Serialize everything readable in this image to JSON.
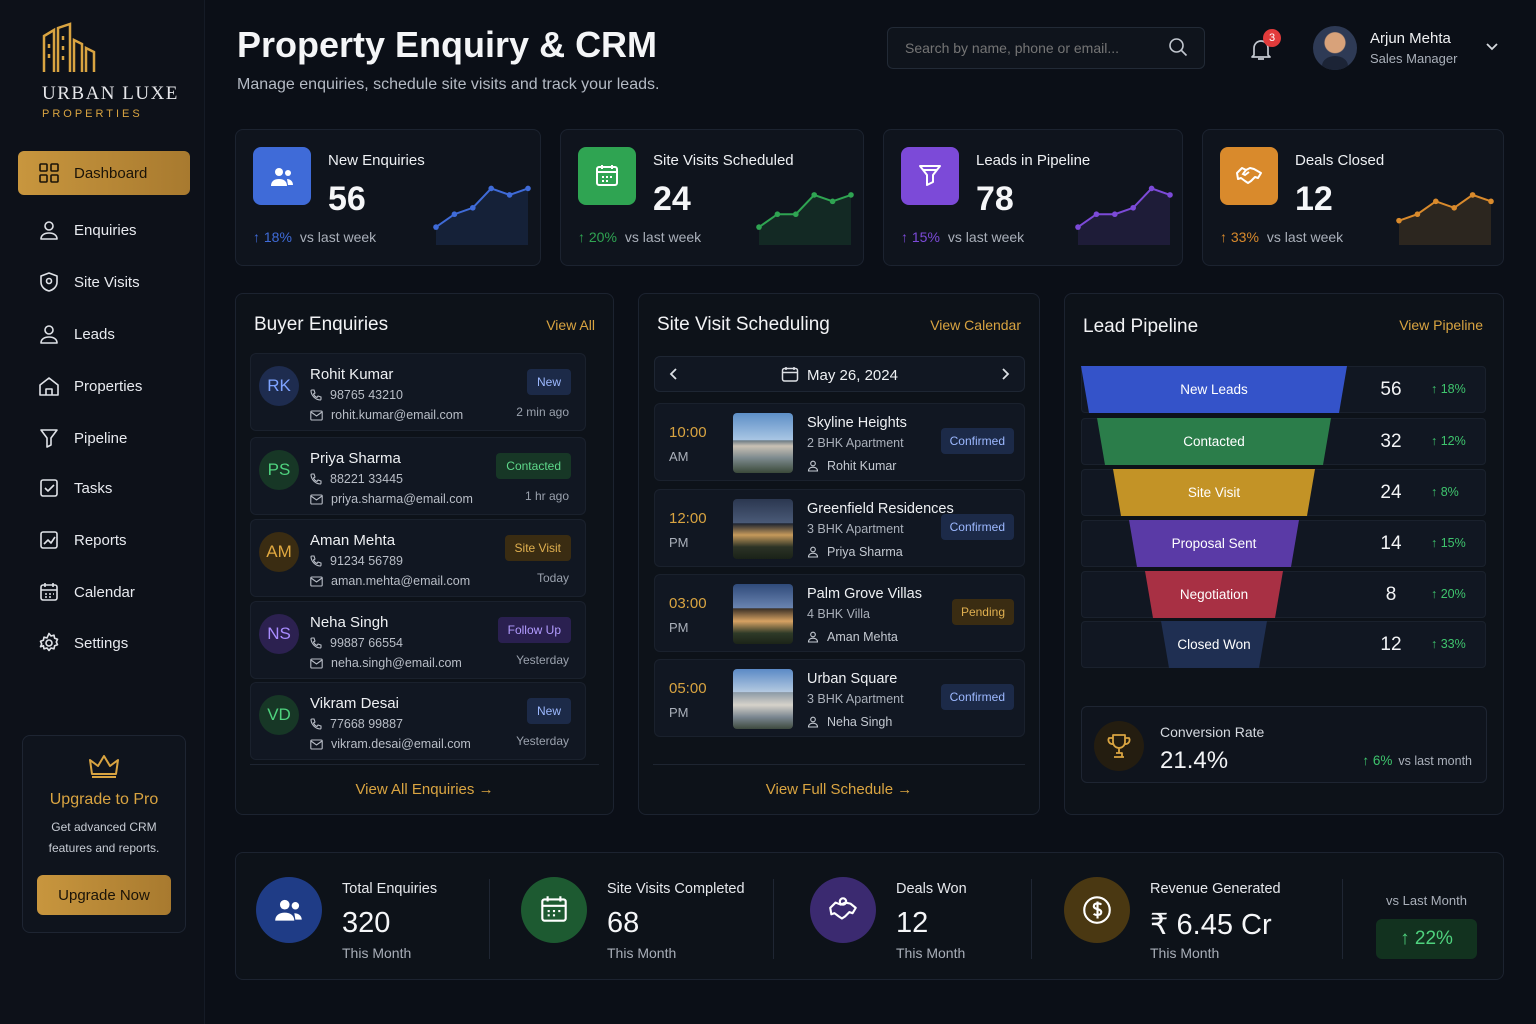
{
  "brand": {
    "name": "URBAN LUXE",
    "tagline": "PROPERTIES"
  },
  "nav": [
    {
      "label": "Dashboard",
      "icon": "grid-icon",
      "active": true
    },
    {
      "label": "Enquiries",
      "icon": "user-icon"
    },
    {
      "label": "Site Visits",
      "icon": "location-icon"
    },
    {
      "label": "Leads",
      "icon": "user-icon"
    },
    {
      "label": "Properties",
      "icon": "home-icon"
    },
    {
      "label": "Pipeline",
      "icon": "funnel-icon"
    },
    {
      "label": "Tasks",
      "icon": "checkbox-icon"
    },
    {
      "label": "Reports",
      "icon": "chart-icon"
    },
    {
      "label": "Calendar",
      "icon": "calendar-icon"
    },
    {
      "label": "Settings",
      "icon": "gear-icon"
    }
  ],
  "upgrade": {
    "title": "Upgrade to Pro",
    "line1": "Get advanced CRM",
    "line2": "features and reports.",
    "button": "Upgrade Now"
  },
  "header": {
    "title": "Property Enquiry & CRM",
    "subtitle": "Manage enquiries, schedule site visits and track your leads.",
    "search_placeholder": "Search by name, phone or email...",
    "notifications": "3",
    "user_name": "Arjun Mehta",
    "user_role": "Sales Manager"
  },
  "kpis": [
    {
      "label": "New Enquiries",
      "value": "56",
      "delta": "18%",
      "delta_text": "vs last week",
      "color": "#3f6bd8",
      "trend": [
        2,
        4,
        5,
        8,
        7,
        8
      ]
    },
    {
      "label": "Site Visits Scheduled",
      "value": "24",
      "delta": "20%",
      "delta_text": "vs last week",
      "color": "#2fa452",
      "trend": [
        2,
        4,
        4,
        7,
        6,
        7
      ]
    },
    {
      "label": "Leads in Pipeline",
      "value": "78",
      "delta": "15%",
      "delta_text": "vs last week",
      "color": "#7c4ad8",
      "trend": [
        2,
        4,
        4,
        5,
        8,
        7
      ]
    },
    {
      "label": "Deals Closed",
      "value": "12",
      "delta": "33%",
      "delta_text": "vs last week",
      "color": "#d98a2c",
      "trend": [
        3,
        4,
        6,
        5,
        7,
        6
      ]
    }
  ],
  "enquiries": {
    "title": "Buyer Enquiries",
    "link": "View All",
    "footer": "View All Enquiries",
    "items": [
      {
        "initials": "RK",
        "name": "Rohit Kumar",
        "phone": "98765 43210",
        "email": "rohit.kumar@email.com",
        "status": "New",
        "time": "2 min ago"
      },
      {
        "initials": "PS",
        "name": "Priya Sharma",
        "phone": "88221 33445",
        "email": "priya.sharma@email.com",
        "status": "Contacted",
        "time": "1 hr ago"
      },
      {
        "initials": "AM",
        "name": "Aman Mehta",
        "phone": "91234 56789",
        "email": "aman.mehta@email.com",
        "status": "Site Visit",
        "time": "Today"
      },
      {
        "initials": "NS",
        "name": "Neha Singh",
        "phone": "99887 66554",
        "email": "neha.singh@email.com",
        "status": "Follow Up",
        "time": "Yesterday"
      },
      {
        "initials": "VD",
        "name": "Vikram Desai",
        "phone": "77668 99887",
        "email": "vikram.desai@email.com",
        "status": "New",
        "time": "Yesterday"
      }
    ]
  },
  "schedule": {
    "title": "Site Visit Scheduling",
    "link": "View Calendar",
    "date": "May 26, 2024",
    "footer": "View Full Schedule",
    "visits": [
      {
        "time": "10:00",
        "ampm": "AM",
        "property": "Skyline Heights",
        "type": "2 BHK Apartment",
        "buyer": "Rohit Kumar",
        "status": "Confirmed"
      },
      {
        "time": "12:00",
        "ampm": "PM",
        "property": "Greenfield Residences",
        "type": "3 BHK Apartment",
        "buyer": "Priya Sharma",
        "status": "Confirmed"
      },
      {
        "time": "03:00",
        "ampm": "PM",
        "property": "Palm Grove Villas",
        "type": "4 BHK Villa",
        "buyer": "Aman Mehta",
        "status": "Pending"
      },
      {
        "time": "05:00",
        "ampm": "PM",
        "property": "Urban Square",
        "type": "3 BHK Apartment",
        "buyer": "Neha Singh",
        "status": "Confirmed"
      }
    ]
  },
  "pipeline": {
    "title": "Lead Pipeline",
    "link": "View Pipeline",
    "stages": [
      {
        "label": "New Leads",
        "count": "56",
        "change": "18%",
        "color": "#3453c9"
      },
      {
        "label": "Contacted",
        "count": "32",
        "change": "12%",
        "color": "#2b7d4a"
      },
      {
        "label": "Site Visit",
        "count": "24",
        "change": "8%",
        "color": "#c39326"
      },
      {
        "label": "Proposal Sent",
        "count": "14",
        "change": "15%",
        "color": "#5a3aa6"
      },
      {
        "label": "Negotiation",
        "count": "8",
        "change": "20%",
        "color": "#a83044"
      },
      {
        "label": "Closed Won",
        "count": "12",
        "change": "33%",
        "color": "#1f2f52"
      }
    ],
    "conversion": {
      "label": "Conversion Rate",
      "value": "21.4%",
      "change": "6%",
      "change_text": "vs last month"
    }
  },
  "summary": {
    "items": [
      {
        "label": "Total Enquiries",
        "value": "320",
        "sub": "This Month",
        "color": "#1f3c86"
      },
      {
        "label": "Site Visits Completed",
        "value": "68",
        "sub": "This Month",
        "color": "#1d5a31"
      },
      {
        "label": "Deals Won",
        "value": "12",
        "sub": "This Month",
        "color": "#3b2a70"
      },
      {
        "label": "Revenue Generated",
        "value": "₹ 6.45 Cr",
        "sub": "This Month",
        "color": "#4a3812"
      }
    ],
    "vs_label": "vs Last Month",
    "vs_value": "22%"
  }
}
